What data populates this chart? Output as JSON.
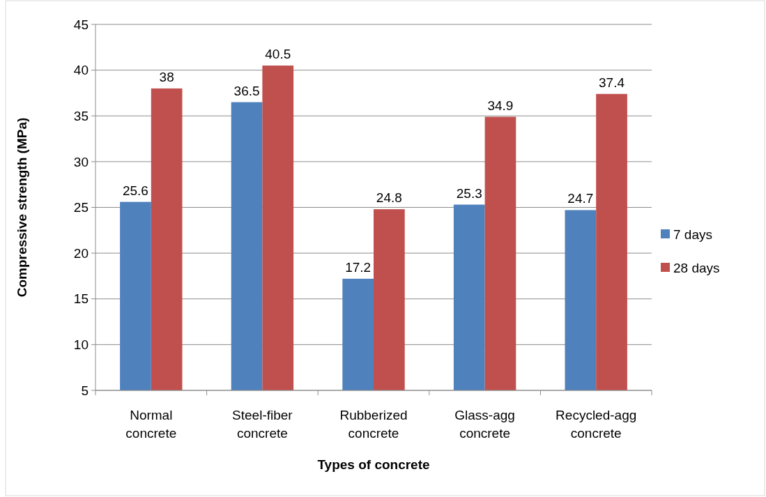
{
  "chart_data": {
    "type": "bar",
    "xlabel": "Types of concrete",
    "ylabel": "Compressive strength (MPa)",
    "categories": [
      "Normal concrete",
      "Steel-fiber concrete",
      "Rubberized concrete",
      "Glass-agg concrete",
      "Recycled-agg concrete"
    ],
    "series": [
      {
        "name": "7 days",
        "color": "#4f81bd",
        "values": [
          25.6,
          36.5,
          17.2,
          25.3,
          24.7
        ]
      },
      {
        "name": "28 days",
        "color": "#c0504d",
        "values": [
          38,
          40.5,
          24.8,
          34.9,
          37.4
        ]
      }
    ],
    "ylim": [
      5,
      45
    ],
    "yticks": [
      5,
      10,
      15,
      20,
      25,
      30,
      35,
      40,
      45
    ],
    "grid": "y",
    "legend": "right",
    "data_labels": true
  }
}
